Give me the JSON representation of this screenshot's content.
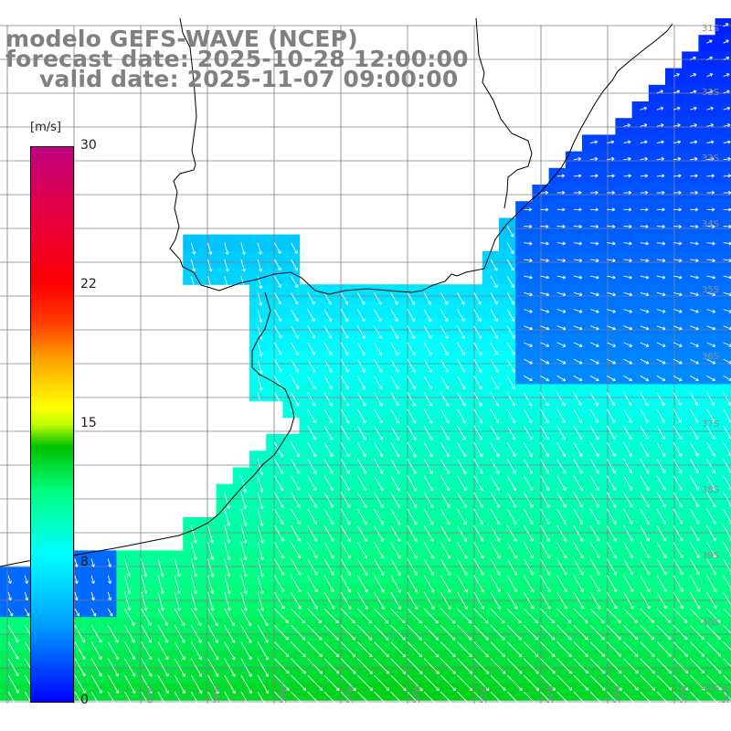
{
  "title": {
    "line1": "modelo GEFS-WAVE (NCEP)",
    "line2": "forecast date: 2025-10-28 12:00:00",
    "line3": "valid date: 2025-11-07 09:00:00"
  },
  "colorbar": {
    "unit": "[m/s]",
    "min": 0,
    "max": 30,
    "ticks": [
      "30",
      "22",
      "15",
      "8",
      "0"
    ],
    "tick_values": [
      30,
      22,
      15,
      8,
      0
    ]
  },
  "map": {
    "lat_labels": [
      "31S",
      "32S",
      "33S",
      "34S",
      "35S",
      "36S",
      "37S",
      "38S",
      "39S",
      "40S",
      "41S"
    ],
    "lon_labels": [
      "60W",
      "59W",
      "58W",
      "57W",
      "56W",
      "55W",
      "54W",
      "53W",
      "52W",
      "51W"
    ],
    "land_color": "#ffffff",
    "coast_color": "#000000",
    "grid_color": "#808080"
  }
}
